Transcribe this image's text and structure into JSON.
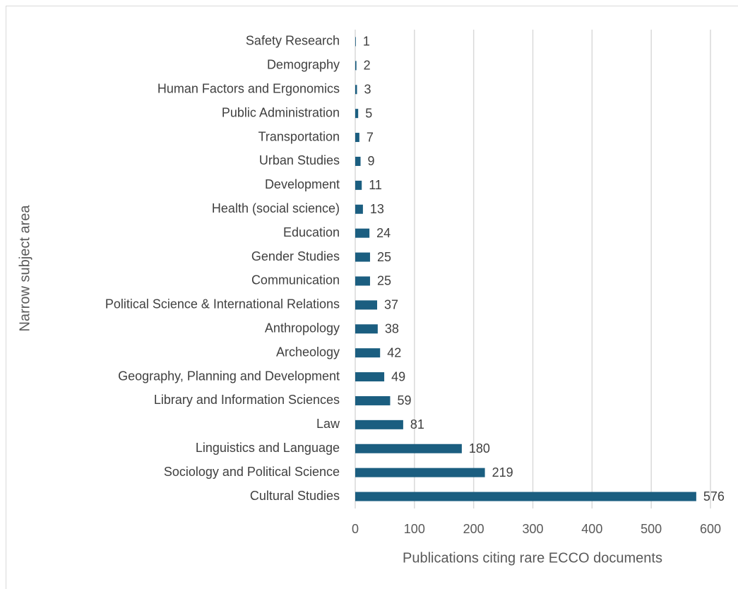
{
  "chart_data": {
    "type": "bar",
    "orientation": "horizontal",
    "categories": [
      "Safety Research",
      "Demography",
      "Human Factors and Ergonomics",
      "Public Administration",
      "Transportation",
      "Urban Studies",
      "Development",
      "Health (social science)",
      "Education",
      "Gender Studies",
      "Communication",
      "Political Science & International Relations",
      "Anthropology",
      "Archeology",
      "Geography, Planning and Development",
      "Library and Information Sciences",
      "Law",
      "Linguistics and Language",
      "Sociology and Political Science",
      "Cultural Studies"
    ],
    "values": [
      1,
      2,
      3,
      5,
      7,
      9,
      11,
      13,
      24,
      25,
      25,
      37,
      38,
      42,
      49,
      59,
      81,
      180,
      219,
      576
    ],
    "color": "#1b5e80",
    "xlim": [
      0,
      600
    ],
    "xticks": [
      0,
      100,
      200,
      300,
      400,
      500,
      600
    ],
    "grid": true,
    "xlabel": "Publications citing rare ECCO documents",
    "ylabel": "Narrow subject area"
  }
}
